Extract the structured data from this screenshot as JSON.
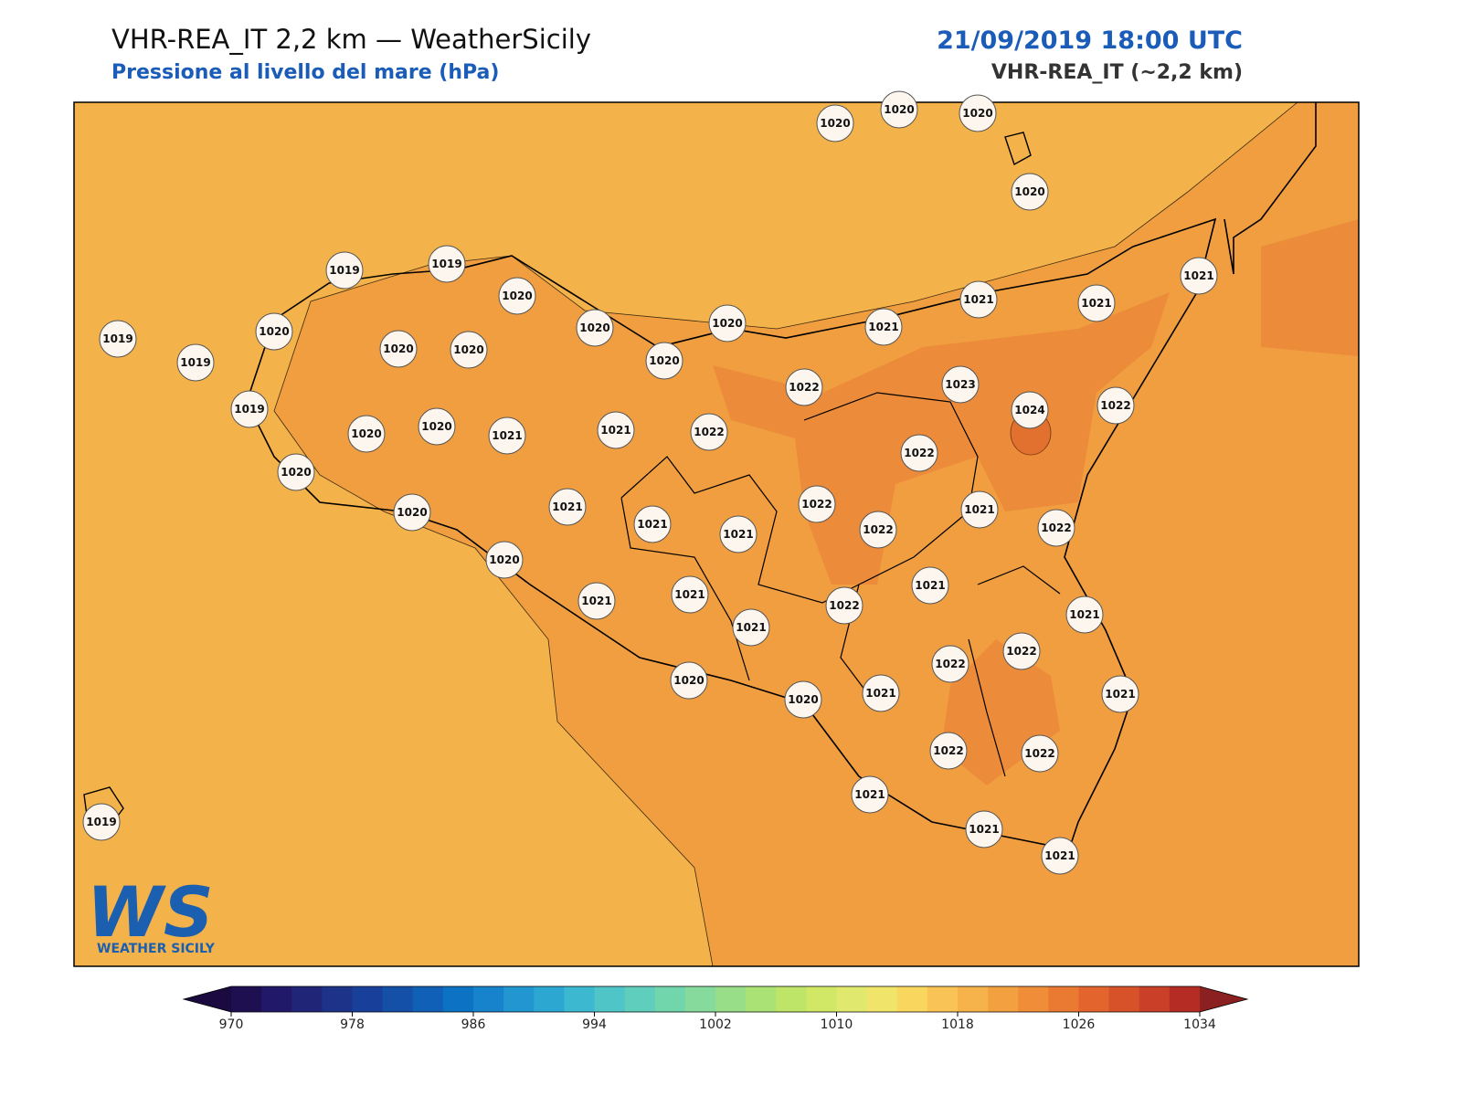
{
  "header": {
    "title": "VHR-REA_IT 2,2 km — WeatherSicily",
    "subtitle": "Pressione al livello del mare (hPa)",
    "date": "21/09/2019 18:00 UTC",
    "model": "VHR-REA_IT (~2,2 km)"
  },
  "stations": [
    1020,
    1020,
    1020,
    1020,
    1019,
    1019,
    1020,
    1019,
    1019,
    1020,
    1020,
    1020,
    1020,
    1020,
    1020,
    1021,
    1021,
    1021,
    1021,
    1019,
    1020,
    1020,
    1021,
    1021,
    1022,
    1022,
    1023,
    1024,
    1022,
    1022,
    1020,
    1020,
    1021,
    1021,
    1021,
    1022,
    1022,
    1021,
    1022,
    1020,
    1021,
    1021,
    1021,
    1022,
    1021,
    1021,
    1022,
    1022,
    1021,
    1020,
    1020,
    1021,
    1022,
    1022,
    1021,
    1021,
    1021,
    1019
  ],
  "logo": {
    "mark": "WS",
    "text": "WEATHER SICILY"
  },
  "colorbar": {
    "range": [
      970,
      1034
    ],
    "ticks": [
      970,
      978,
      986,
      994,
      1002,
      1010,
      1018,
      1026,
      1034
    ],
    "under": "#1a0a40",
    "over": "#8a2020",
    "colors": [
      "#1e1050",
      "#22186a",
      "#212578",
      "#1d3389",
      "#18409a",
      "#1450a8",
      "#1060b8",
      "#0c72c4",
      "#1683cc",
      "#2196d0",
      "#2ba7d2",
      "#3cb8d0",
      "#4fc5c8",
      "#60cebc",
      "#72d6ad",
      "#86da9c",
      "#98de88",
      "#abe275",
      "#bee567",
      "#d0e866",
      "#e0e96e",
      "#f0e46a",
      "#f9d65e",
      "#f9c455",
      "#f6b24b",
      "#f3a041",
      "#ef8d38",
      "#ea7932",
      "#e3652d",
      "#d85229",
      "#c93f27",
      "#b52c25"
    ]
  }
}
